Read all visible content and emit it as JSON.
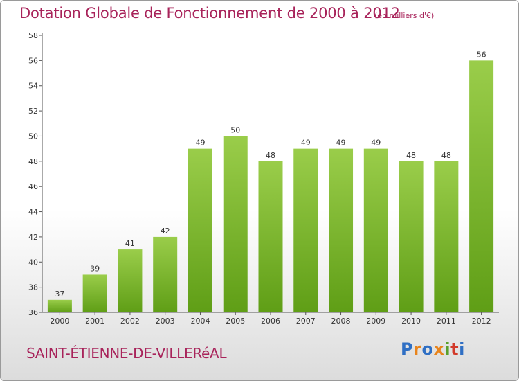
{
  "chart_data": {
    "type": "bar",
    "title": "Dotation Globale de Fonctionnement de 2000 à 2012",
    "subtitle": "(en milliers d'€)",
    "categories": [
      "2000",
      "2001",
      "2002",
      "2003",
      "2004",
      "2005",
      "2006",
      "2007",
      "2008",
      "2009",
      "2010",
      "2011",
      "2012"
    ],
    "values": [
      37,
      39,
      41,
      42,
      49,
      50,
      48,
      49,
      49,
      49,
      48,
      48,
      56
    ],
    "ylim": [
      36,
      58
    ],
    "yticks": [
      36,
      38,
      40,
      42,
      44,
      46,
      48,
      50,
      52,
      54,
      56,
      58
    ],
    "grid": false,
    "bar_color_top": "#9acd4a",
    "bar_color_bottom": "#5f9e16"
  },
  "footer": {
    "city": "SAINT-ÉTIENNE-DE-VILLERéAL",
    "logo": [
      "P",
      "r",
      "o",
      "x",
      "i",
      "t",
      "i"
    ]
  }
}
